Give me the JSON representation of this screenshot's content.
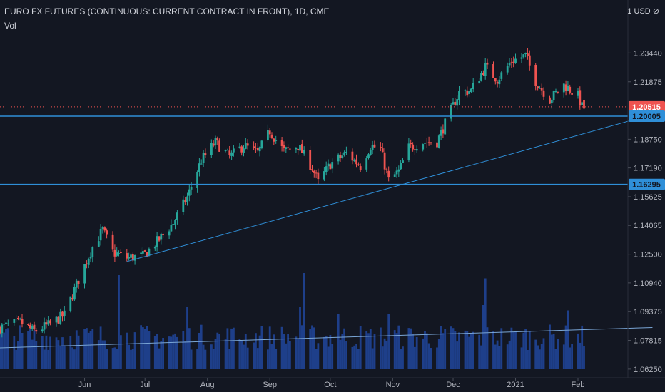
{
  "header": {
    "title": "EURO FX FUTURES (CONTINUOUS: CURRENT CONTRACT IN FRONT), 1D, CME",
    "volume_label": "Vol",
    "currency": "1 USD ⊘"
  },
  "colors": {
    "background": "#131722",
    "up": "#26a69a",
    "down": "#ef5350",
    "volume": "#1e3f8a",
    "trendline": "#2f8fd8",
    "level_line": "#2f8fd8",
    "last_price": "#ef5350",
    "axis_text": "#b2b5be"
  },
  "chart_data": {
    "type": "candlestick",
    "y_scale": {
      "min": 1.0578,
      "max": 1.2516
    },
    "y_ticks": [
      "1.23440",
      "1.21875",
      "1.20515",
      "1.20005",
      "1.18750",
      "1.17190",
      "1.16295",
      "1.15625",
      "1.14065",
      "1.12500",
      "1.10940",
      "1.09375",
      "1.07815",
      "1.06250"
    ],
    "x_ticks": [
      {
        "label": "Jun",
        "date": "2020-06-01"
      },
      {
        "label": "Jul",
        "date": "2020-07-01"
      },
      {
        "label": "Aug",
        "date": "2020-08-01"
      },
      {
        "label": "Sep",
        "date": "2020-09-01"
      },
      {
        "label": "Oct",
        "date": "2020-10-01"
      },
      {
        "label": "Nov",
        "date": "2020-11-01"
      },
      {
        "label": "Dec",
        "date": "2020-12-01"
      },
      {
        "label": "2021",
        "date": "2021-01-01"
      },
      {
        "label": "Feb",
        "date": "2021-02-01"
      }
    ],
    "date_range": [
      "2020-04-20",
      "2021-02-05"
    ],
    "last_price": {
      "value": 1.20515,
      "label": "1.20515"
    },
    "levels": [
      {
        "value": 1.20005,
        "label": "1.20005"
      },
      {
        "value": 1.16295,
        "label": "1.16295"
      }
    ],
    "trendlines": [
      {
        "from": {
          "date": "2020-06-22",
          "price": 1.121
        },
        "to": {
          "date": "2021-03-10",
          "price": 1.201
        }
      }
    ],
    "volume_trendline": {
      "from": {
        "date": "2020-04-20",
        "volume": 20
      },
      "to": {
        "date": "2021-03-10",
        "volume": 39
      }
    },
    "volume_scale_max": 100,
    "anchors": [
      [
        "2020-04-20",
        1.085
      ],
      [
        "2020-04-30",
        1.088
      ],
      [
        "2020-05-07",
        1.083
      ],
      [
        "2020-05-15",
        1.087
      ],
      [
        "2020-05-22",
        1.092
      ],
      [
        "2020-05-29",
        1.111
      ],
      [
        "2020-06-05",
        1.129
      ],
      [
        "2020-06-10",
        1.138
      ],
      [
        "2020-06-15",
        1.126
      ],
      [
        "2020-06-22",
        1.123
      ],
      [
        "2020-06-30",
        1.124
      ],
      [
        "2020-07-08",
        1.133
      ],
      [
        "2020-07-15",
        1.142
      ],
      [
        "2020-07-22",
        1.156
      ],
      [
        "2020-07-29",
        1.176
      ],
      [
        "2020-08-05",
        1.186
      ],
      [
        "2020-08-12",
        1.178
      ],
      [
        "2020-08-19",
        1.184
      ],
      [
        "2020-08-26",
        1.18
      ],
      [
        "2020-09-01",
        1.192
      ],
      [
        "2020-09-08",
        1.181
      ],
      [
        "2020-09-15",
        1.184
      ],
      [
        "2020-09-22",
        1.172
      ],
      [
        "2020-09-25",
        1.164
      ],
      [
        "2020-10-01",
        1.174
      ],
      [
        "2020-10-09",
        1.18
      ],
      [
        "2020-10-16",
        1.173
      ],
      [
        "2020-10-21",
        1.184
      ],
      [
        "2020-10-26",
        1.182
      ],
      [
        "2020-10-30",
        1.165
      ],
      [
        "2020-11-04",
        1.17
      ],
      [
        "2020-11-09",
        1.183
      ],
      [
        "2020-11-16",
        1.186
      ],
      [
        "2020-11-23",
        1.186
      ],
      [
        "2020-11-27",
        1.196
      ],
      [
        "2020-12-04",
        1.213
      ],
      [
        "2020-12-10",
        1.214
      ],
      [
        "2020-12-17",
        1.227
      ],
      [
        "2020-12-23",
        1.22
      ],
      [
        "2020-12-30",
        1.23
      ],
      [
        "2021-01-06",
        1.233
      ],
      [
        "2021-01-11",
        1.219
      ],
      [
        "2021-01-18",
        1.209
      ],
      [
        "2021-01-25",
        1.217
      ],
      [
        "2021-02-01",
        1.211
      ],
      [
        "2021-02-04",
        1.202
      ]
    ],
    "volume_spikes": [
      {
        "date": "2020-06-18",
        "volume": 88
      },
      {
        "date": "2020-09-18",
        "volume": 90
      },
      {
        "date": "2020-09-16",
        "volume": 58
      },
      {
        "date": "2020-12-17",
        "volume": 85
      },
      {
        "date": "2020-12-16",
        "volume": 60
      },
      {
        "date": "2020-07-22",
        "volume": 58
      },
      {
        "date": "2020-10-05",
        "volume": 52
      },
      {
        "date": "2020-10-30",
        "volume": 52
      },
      {
        "date": "2021-01-27",
        "volume": 55
      }
    ]
  }
}
